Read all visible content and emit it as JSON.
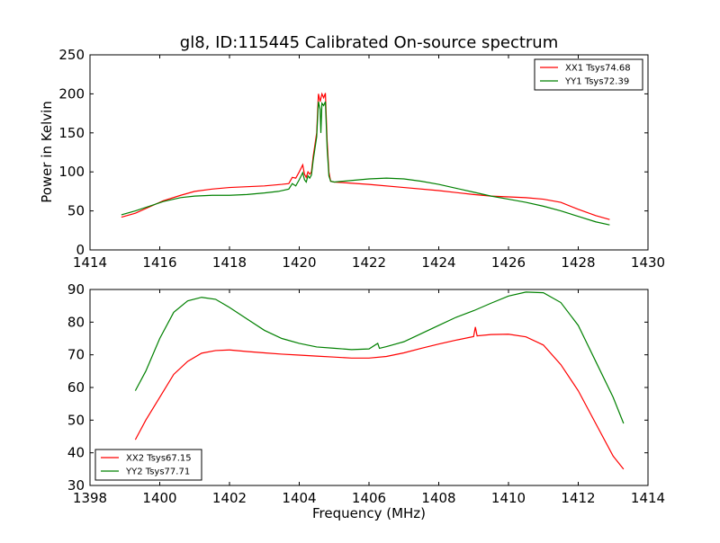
{
  "figure": {
    "title": "gl8, ID:115445 Calibrated On-source spectrum",
    "ylabel": "Power in Kelvin",
    "xlabel": "Frequency (MHz)"
  },
  "colors": {
    "red": "#ff0000",
    "green": "#008000",
    "axis": "#000000"
  },
  "chart_data": [
    {
      "type": "line",
      "title": "gl8, ID:115445 Calibrated On-source spectrum",
      "ylabel": "Power in Kelvin",
      "xlabel": "",
      "xlim": [
        1414,
        1430
      ],
      "ylim": [
        0,
        250
      ],
      "xticks": [
        1414,
        1416,
        1418,
        1420,
        1422,
        1424,
        1426,
        1428,
        1430
      ],
      "yticks": [
        0,
        50,
        100,
        150,
        200,
        250
      ],
      "grid": false,
      "legend_position": "top-right",
      "series": [
        {
          "name": "XX1 Tsys74.68",
          "color": "#ff0000",
          "points": [
            [
              1414.9,
              42
            ],
            [
              1415.3,
              47
            ],
            [
              1415.7,
              55
            ],
            [
              1416.1,
              63
            ],
            [
              1416.6,
              70
            ],
            [
              1417.0,
              75
            ],
            [
              1417.5,
              78
            ],
            [
              1418.0,
              80
            ],
            [
              1418.5,
              81
            ],
            [
              1419.0,
              82
            ],
            [
              1419.5,
              84
            ],
            [
              1419.7,
              85
            ],
            [
              1419.8,
              93
            ],
            [
              1419.9,
              92
            ],
            [
              1420.0,
              100
            ],
            [
              1420.1,
              109
            ],
            [
              1420.15,
              97
            ],
            [
              1420.2,
              93
            ],
            [
              1420.25,
              100
            ],
            [
              1420.3,
              97
            ],
            [
              1420.35,
              100
            ],
            [
              1420.4,
              120
            ],
            [
              1420.5,
              150
            ],
            [
              1420.55,
              200
            ],
            [
              1420.6,
              190
            ],
            [
              1420.65,
              200
            ],
            [
              1420.7,
              195
            ],
            [
              1420.75,
              201
            ],
            [
              1420.8,
              140
            ],
            [
              1420.85,
              100
            ],
            [
              1420.9,
              88
            ],
            [
              1421.0,
              87
            ],
            [
              1422.0,
              84
            ],
            [
              1423.0,
              80
            ],
            [
              1424.0,
              76
            ],
            [
              1425.0,
              71
            ],
            [
              1425.5,
              69
            ],
            [
              1426.0,
              68
            ],
            [
              1426.5,
              67
            ],
            [
              1427.0,
              65
            ],
            [
              1427.5,
              61
            ],
            [
              1428.0,
              52
            ],
            [
              1428.5,
              44
            ],
            [
              1428.9,
              39
            ]
          ]
        },
        {
          "name": "YY1 Tsys72.39",
          "color": "#008000",
          "points": [
            [
              1414.9,
              45
            ],
            [
              1415.3,
              50
            ],
            [
              1415.7,
              56
            ],
            [
              1416.1,
              62
            ],
            [
              1416.6,
              67
            ],
            [
              1417.0,
              69
            ],
            [
              1417.5,
              70
            ],
            [
              1418.0,
              70
            ],
            [
              1418.5,
              71
            ],
            [
              1419.0,
              73
            ],
            [
              1419.4,
              75
            ],
            [
              1419.7,
              78
            ],
            [
              1419.8,
              85
            ],
            [
              1419.9,
              82
            ],
            [
              1420.0,
              90
            ],
            [
              1420.1,
              99
            ],
            [
              1420.15,
              90
            ],
            [
              1420.2,
              87
            ],
            [
              1420.25,
              95
            ],
            [
              1420.3,
              92
            ],
            [
              1420.35,
              96
            ],
            [
              1420.4,
              115
            ],
            [
              1420.5,
              145
            ],
            [
              1420.55,
              190
            ],
            [
              1420.6,
              180
            ],
            [
              1420.62,
              150
            ],
            [
              1420.65,
              188
            ],
            [
              1420.7,
              185
            ],
            [
              1420.75,
              190
            ],
            [
              1420.8,
              130
            ],
            [
              1420.85,
              95
            ],
            [
              1420.9,
              88
            ],
            [
              1421.0,
              87
            ],
            [
              1421.5,
              89
            ],
            [
              1422.0,
              91
            ],
            [
              1422.5,
              92
            ],
            [
              1423.0,
              91
            ],
            [
              1423.5,
              88
            ],
            [
              1424.0,
              84
            ],
            [
              1424.5,
              79
            ],
            [
              1425.0,
              74
            ],
            [
              1425.5,
              69
            ],
            [
              1426.0,
              65
            ],
            [
              1426.5,
              61
            ],
            [
              1427.0,
              56
            ],
            [
              1427.5,
              50
            ],
            [
              1428.0,
              43
            ],
            [
              1428.5,
              36
            ],
            [
              1428.9,
              32
            ]
          ]
        }
      ]
    },
    {
      "type": "line",
      "title": "",
      "ylabel": "",
      "xlabel": "Frequency (MHz)",
      "xlim": [
        1398,
        1414
      ],
      "ylim": [
        30,
        90
      ],
      "xticks": [
        1398,
        1400,
        1402,
        1404,
        1406,
        1408,
        1410,
        1412,
        1414
      ],
      "yticks": [
        30,
        40,
        50,
        60,
        70,
        80,
        90
      ],
      "grid": false,
      "legend_position": "bottom-left",
      "series": [
        {
          "name": "XX2 Tsys67.15",
          "color": "#ff0000",
          "points": [
            [
              1399.3,
              44
            ],
            [
              1399.6,
              50
            ],
            [
              1400.0,
              57
            ],
            [
              1400.4,
              64
            ],
            [
              1400.8,
              68
            ],
            [
              1401.2,
              70.5
            ],
            [
              1401.6,
              71.3
            ],
            [
              1402.0,
              71.5
            ],
            [
              1402.5,
              71
            ],
            [
              1403.0,
              70.6
            ],
            [
              1403.5,
              70.2
            ],
            [
              1404.0,
              69.9
            ],
            [
              1404.5,
              69.6
            ],
            [
              1405.0,
              69.3
            ],
            [
              1405.5,
              69
            ],
            [
              1406.0,
              69
            ],
            [
              1406.5,
              69.5
            ],
            [
              1407.0,
              70.6
            ],
            [
              1407.5,
              72
            ],
            [
              1408.0,
              73.3
            ],
            [
              1408.5,
              74.5
            ],
            [
              1409.0,
              75.6
            ],
            [
              1409.05,
              78.5
            ],
            [
              1409.1,
              75.8
            ],
            [
              1409.5,
              76.2
            ],
            [
              1410.0,
              76.3
            ],
            [
              1410.5,
              75.5
            ],
            [
              1411.0,
              73
            ],
            [
              1411.5,
              67
            ],
            [
              1412.0,
              59
            ],
            [
              1412.5,
              49
            ],
            [
              1413.0,
              39
            ],
            [
              1413.3,
              35
            ]
          ]
        },
        {
          "name": "YY2 Tsys77.71",
          "color": "#008000",
          "points": [
            [
              1399.3,
              59
            ],
            [
              1399.6,
              65
            ],
            [
              1400.0,
              75
            ],
            [
              1400.4,
              83
            ],
            [
              1400.8,
              86.5
            ],
            [
              1401.2,
              87.6
            ],
            [
              1401.6,
              87
            ],
            [
              1402.0,
              84.5
            ],
            [
              1402.5,
              81
            ],
            [
              1403.0,
              77.5
            ],
            [
              1403.5,
              75
            ],
            [
              1404.0,
              73.5
            ],
            [
              1404.5,
              72.4
            ],
            [
              1405.0,
              72
            ],
            [
              1405.5,
              71.6
            ],
            [
              1406.0,
              71.8
            ],
            [
              1406.25,
              73.5
            ],
            [
              1406.3,
              72
            ],
            [
              1406.5,
              72.5
            ],
            [
              1407.0,
              74
            ],
            [
              1407.5,
              76.5
            ],
            [
              1408.0,
              79
            ],
            [
              1408.5,
              81.5
            ],
            [
              1409.0,
              83.5
            ],
            [
              1409.5,
              85.8
            ],
            [
              1410.0,
              88
            ],
            [
              1410.5,
              89.2
            ],
            [
              1411.0,
              89
            ],
            [
              1411.5,
              86
            ],
            [
              1412.0,
              79
            ],
            [
              1412.5,
              68
            ],
            [
              1413.0,
              57
            ],
            [
              1413.3,
              49
            ]
          ]
        }
      ]
    }
  ]
}
